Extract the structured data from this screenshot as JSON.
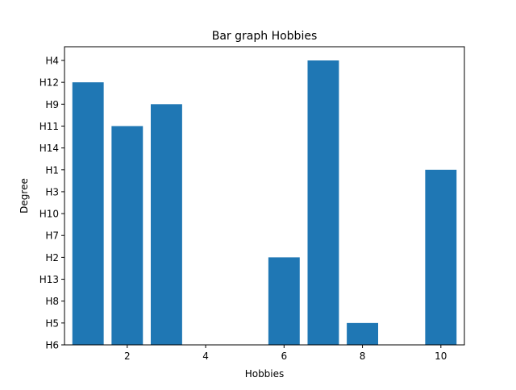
{
  "chart_data": {
    "type": "bar",
    "title": "Bar graph Hobbies",
    "xlabel": "Hobbies",
    "ylabel": "Degree",
    "x": [
      1,
      2,
      3,
      4,
      5,
      6,
      7,
      8,
      9,
      10
    ],
    "values": [
      "H12",
      "H11",
      "H9",
      "H6",
      "H6",
      "H2",
      "H4",
      "H5",
      "H6",
      "H1"
    ],
    "y_categories": [
      "H6",
      "H5",
      "H8",
      "H13",
      "H2",
      "H7",
      "H10",
      "H3",
      "H1",
      "H14",
      "H11",
      "H9",
      "H12",
      "H4"
    ],
    "x_ticks": [
      2,
      4,
      6,
      8,
      10
    ],
    "xlim": [
      0.4,
      10.6
    ],
    "grid": false,
    "bar_color": "#1f77b4"
  }
}
